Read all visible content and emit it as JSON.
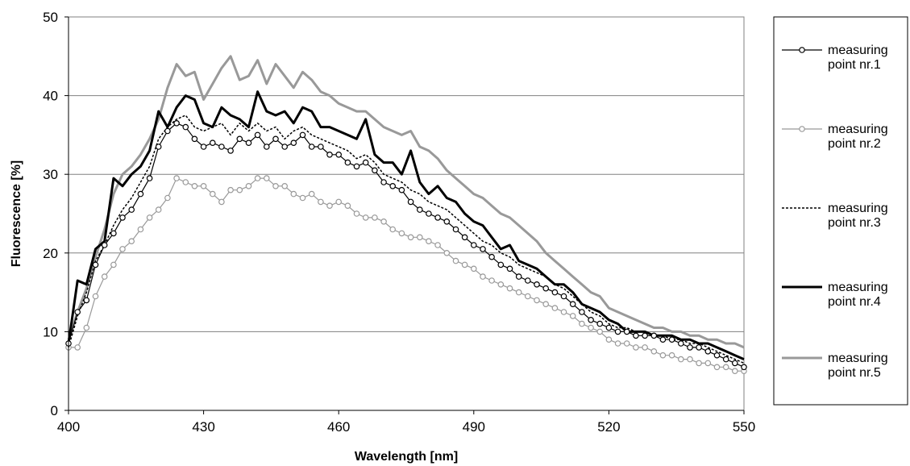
{
  "chart_data": {
    "type": "line",
    "title": "",
    "xlabel": "Wavelength [nm]",
    "ylabel": "Fluorescence [%]",
    "xlim": [
      400,
      550
    ],
    "ylim": [
      0,
      50
    ],
    "xticks": [
      400,
      430,
      460,
      490,
      520,
      550
    ],
    "yticks": [
      0,
      10,
      20,
      30,
      40,
      50
    ],
    "xtick_labels": [
      "400",
      "430",
      "460",
      "490",
      "520",
      "550"
    ],
    "ytick_labels": [
      "0",
      "10",
      "20",
      "30",
      "40",
      "50"
    ],
    "grid": "horizontal",
    "legend_position": "right",
    "series": [
      {
        "name": "measuring point nr.1",
        "color": "#000000",
        "line_style": "solid-thin",
        "marker": "circle",
        "x": [
          400,
          402,
          404,
          406,
          408,
          410,
          412,
          414,
          416,
          418,
          420,
          422,
          424,
          426,
          428,
          430,
          432,
          434,
          436,
          438,
          440,
          442,
          444,
          446,
          448,
          450,
          452,
          454,
          456,
          458,
          460,
          462,
          464,
          466,
          468,
          470,
          472,
          474,
          476,
          478,
          480,
          482,
          484,
          486,
          488,
          490,
          492,
          494,
          496,
          498,
          500,
          502,
          504,
          506,
          508,
          510,
          512,
          514,
          516,
          518,
          520,
          522,
          524,
          526,
          528,
          530,
          532,
          534,
          536,
          538,
          540,
          542,
          544,
          546,
          548,
          550
        ],
        "y": [
          8.5,
          12.5,
          14.0,
          18.5,
          21.0,
          22.5,
          24.5,
          25.5,
          27.5,
          29.5,
          33.5,
          35.5,
          36.5,
          36.0,
          34.5,
          33.5,
          34.0,
          33.5,
          33.0,
          34.5,
          34.0,
          35.0,
          33.5,
          34.5,
          33.5,
          34.0,
          35.0,
          33.5,
          33.5,
          32.5,
          32.5,
          31.5,
          31.0,
          31.5,
          30.5,
          29.0,
          28.5,
          28.0,
          26.5,
          25.5,
          25.0,
          24.5,
          24.0,
          23.0,
          22.0,
          21.0,
          20.5,
          19.5,
          18.5,
          18.0,
          17.0,
          16.5,
          16.0,
          15.5,
          15.0,
          14.5,
          13.5,
          12.5,
          11.5,
          11.0,
          10.5,
          10.0,
          10.0,
          9.5,
          9.5,
          9.5,
          9.0,
          9.0,
          8.5,
          8.0,
          8.0,
          7.5,
          7.0,
          6.5,
          6.0,
          5.5
        ]
      },
      {
        "name": "measuring point nr.2",
        "color": "#999999",
        "line_style": "solid-thin",
        "marker": "circle",
        "x": [
          400,
          402,
          404,
          406,
          408,
          410,
          412,
          414,
          416,
          418,
          420,
          422,
          424,
          426,
          428,
          430,
          432,
          434,
          436,
          438,
          440,
          442,
          444,
          446,
          448,
          450,
          452,
          454,
          456,
          458,
          460,
          462,
          464,
          466,
          468,
          470,
          472,
          474,
          476,
          478,
          480,
          482,
          484,
          486,
          488,
          490,
          492,
          494,
          496,
          498,
          500,
          502,
          504,
          506,
          508,
          510,
          512,
          514,
          516,
          518,
          520,
          522,
          524,
          526,
          528,
          530,
          532,
          534,
          536,
          538,
          540,
          542,
          544,
          546,
          548,
          550
        ],
        "y": [
          8.0,
          8.0,
          10.5,
          14.5,
          17.0,
          18.5,
          20.5,
          21.5,
          23.0,
          24.5,
          25.5,
          27.0,
          29.5,
          29.0,
          28.5,
          28.5,
          27.5,
          26.5,
          28.0,
          28.0,
          28.5,
          29.5,
          29.5,
          28.5,
          28.5,
          27.5,
          27.0,
          27.5,
          26.5,
          26.0,
          26.5,
          26.0,
          25.0,
          24.5,
          24.5,
          24.0,
          23.0,
          22.5,
          22.0,
          22.0,
          21.5,
          21.0,
          20.0,
          19.0,
          18.5,
          18.0,
          17.0,
          16.5,
          16.0,
          15.5,
          15.0,
          14.5,
          14.0,
          13.5,
          13.0,
          12.5,
          12.0,
          11.0,
          10.5,
          10.0,
          9.0,
          8.5,
          8.5,
          8.0,
          8.0,
          7.5,
          7.0,
          7.0,
          6.5,
          6.5,
          6.0,
          6.0,
          5.5,
          5.5,
          5.0,
          5.0
        ]
      },
      {
        "name": "measuring point nr.3",
        "color": "#000000",
        "line_style": "dotted",
        "marker": "none",
        "x": [
          400,
          402,
          404,
          406,
          408,
          410,
          412,
          414,
          416,
          418,
          420,
          422,
          424,
          426,
          428,
          430,
          432,
          434,
          436,
          438,
          440,
          442,
          444,
          446,
          448,
          450,
          452,
          454,
          456,
          458,
          460,
          462,
          464,
          466,
          468,
          470,
          472,
          474,
          476,
          478,
          480,
          482,
          484,
          486,
          488,
          490,
          492,
          494,
          496,
          498,
          500,
          502,
          504,
          506,
          508,
          510,
          512,
          514,
          516,
          518,
          520,
          522,
          524,
          526,
          528,
          530,
          532,
          534,
          536,
          538,
          540,
          542,
          544,
          546,
          548,
          550
        ],
        "y": [
          8.0,
          12.0,
          15.0,
          19.0,
          21.0,
          23.5,
          25.5,
          27.0,
          29.0,
          31.0,
          34.5,
          36.0,
          37.0,
          37.5,
          36.0,
          35.5,
          36.0,
          36.5,
          35.0,
          36.5,
          35.5,
          36.5,
          35.5,
          36.0,
          34.5,
          35.5,
          36.0,
          35.0,
          34.5,
          34.0,
          33.5,
          33.0,
          32.0,
          32.5,
          31.5,
          30.0,
          29.5,
          29.0,
          28.0,
          27.5,
          26.5,
          26.0,
          25.5,
          24.5,
          23.5,
          22.5,
          21.5,
          21.0,
          20.0,
          19.5,
          18.5,
          18.0,
          17.5,
          17.0,
          16.0,
          15.5,
          14.5,
          13.5,
          12.5,
          12.0,
          11.0,
          10.5,
          10.5,
          10.0,
          10.0,
          9.5,
          9.5,
          9.0,
          9.0,
          8.5,
          8.5,
          8.0,
          7.5,
          7.0,
          6.5,
          6.0
        ]
      },
      {
        "name": "measuring point nr.4",
        "color": "#000000",
        "line_style": "solid-thick",
        "marker": "none",
        "x": [
          400,
          402,
          404,
          406,
          408,
          410,
          412,
          414,
          416,
          418,
          420,
          422,
          424,
          426,
          428,
          430,
          432,
          434,
          436,
          438,
          440,
          442,
          444,
          446,
          448,
          450,
          452,
          454,
          456,
          458,
          460,
          462,
          464,
          466,
          468,
          470,
          472,
          474,
          476,
          478,
          480,
          482,
          484,
          486,
          488,
          490,
          492,
          494,
          496,
          498,
          500,
          502,
          504,
          506,
          508,
          510,
          512,
          514,
          516,
          518,
          520,
          522,
          524,
          526,
          528,
          530,
          532,
          534,
          536,
          538,
          540,
          542,
          544,
          546,
          548,
          550
        ],
        "y": [
          8.5,
          16.5,
          16.0,
          20.5,
          21.5,
          29.5,
          28.5,
          30.0,
          31.0,
          33.0,
          38.0,
          36.0,
          38.5,
          40.0,
          39.5,
          36.5,
          36.0,
          38.5,
          37.5,
          37.0,
          36.0,
          40.5,
          38.0,
          37.5,
          38.0,
          36.5,
          38.5,
          38.0,
          36.0,
          36.0,
          35.5,
          35.0,
          34.5,
          37.0,
          32.5,
          31.5,
          31.5,
          30.0,
          33.0,
          29.0,
          27.5,
          28.5,
          27.0,
          26.5,
          25.0,
          24.0,
          23.5,
          22.0,
          20.5,
          21.0,
          19.0,
          18.5,
          18.0,
          17.0,
          16.0,
          16.0,
          15.0,
          13.5,
          13.0,
          12.5,
          11.5,
          11.0,
          10.0,
          10.0,
          10.0,
          9.5,
          9.5,
          9.5,
          9.0,
          9.0,
          8.5,
          8.5,
          8.0,
          7.5,
          7.0,
          6.5
        ]
      },
      {
        "name": "measuring point nr.5",
        "color": "#999999",
        "line_style": "solid-thick",
        "marker": "none",
        "x": [
          400,
          402,
          404,
          406,
          408,
          410,
          412,
          414,
          416,
          418,
          420,
          422,
          424,
          426,
          428,
          430,
          432,
          434,
          436,
          438,
          440,
          442,
          444,
          446,
          448,
          450,
          452,
          454,
          456,
          458,
          460,
          462,
          464,
          466,
          468,
          470,
          472,
          474,
          476,
          478,
          480,
          482,
          484,
          486,
          488,
          490,
          492,
          494,
          496,
          498,
          500,
          502,
          504,
          506,
          508,
          510,
          512,
          514,
          516,
          518,
          520,
          522,
          524,
          526,
          528,
          530,
          532,
          534,
          536,
          538,
          540,
          542,
          544,
          546,
          548,
          550
        ],
        "y": [
          9.0,
          12.5,
          15.5,
          19.5,
          23.0,
          27.5,
          30.0,
          31.0,
          32.5,
          34.5,
          37.0,
          41.0,
          44.0,
          42.5,
          43.0,
          39.5,
          41.5,
          43.5,
          45.0,
          42.0,
          42.5,
          44.5,
          41.5,
          44.0,
          42.5,
          41.0,
          43.0,
          42.0,
          40.5,
          40.0,
          39.0,
          38.5,
          38.0,
          38.0,
          37.0,
          36.0,
          35.5,
          35.0,
          35.5,
          33.5,
          33.0,
          32.0,
          30.5,
          29.5,
          28.5,
          27.5,
          27.0,
          26.0,
          25.0,
          24.5,
          23.5,
          22.5,
          21.5,
          20.0,
          19.0,
          18.0,
          17.0,
          16.0,
          15.0,
          14.5,
          13.0,
          12.5,
          12.0,
          11.5,
          11.0,
          10.5,
          10.5,
          10.0,
          10.0,
          9.5,
          9.5,
          9.0,
          9.0,
          8.5,
          8.5,
          8.0
        ]
      }
    ]
  }
}
